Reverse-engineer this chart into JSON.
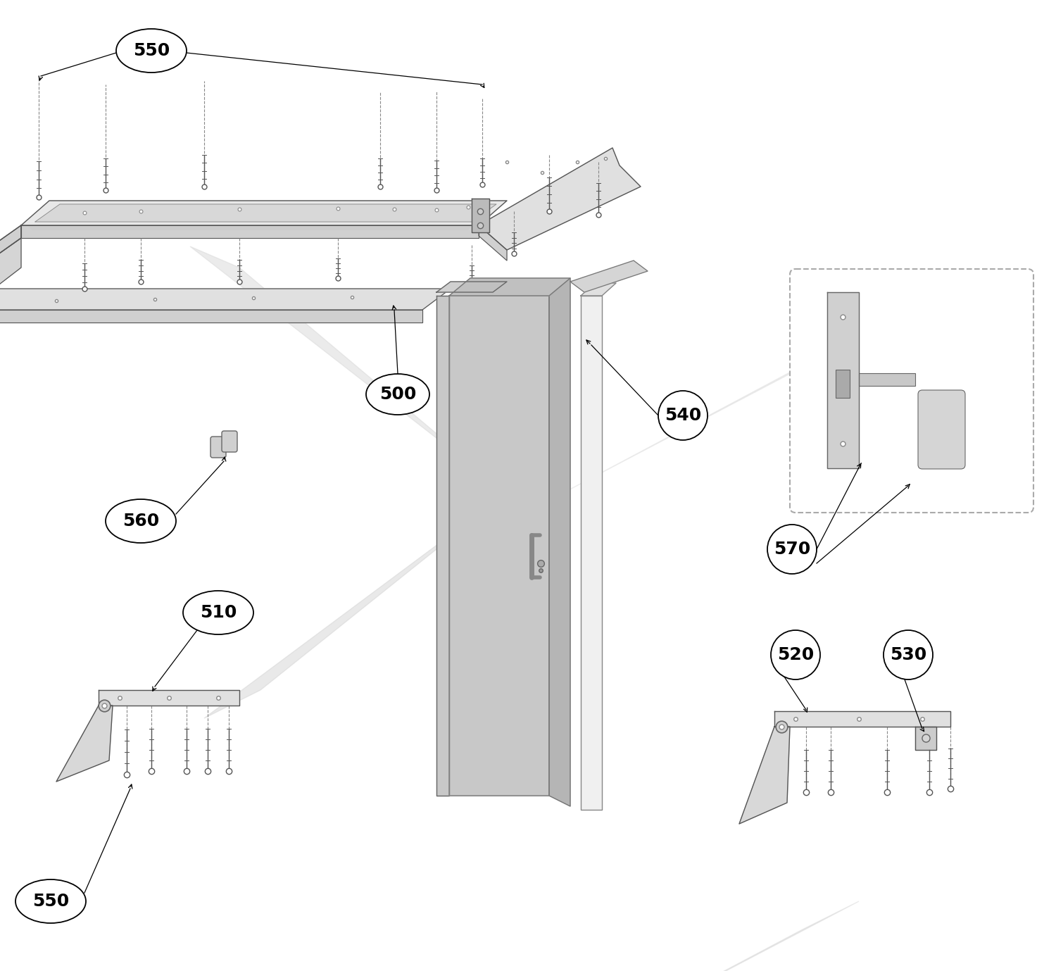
{
  "bg": "#ffffff",
  "fw": 15.0,
  "fh": 13.79,
  "lc": "#222222",
  "pc_light": "#e8e8e8",
  "pc_mid": "#d0d0d0",
  "pc_dark": "#b8b8b8",
  "ec": "#555555"
}
